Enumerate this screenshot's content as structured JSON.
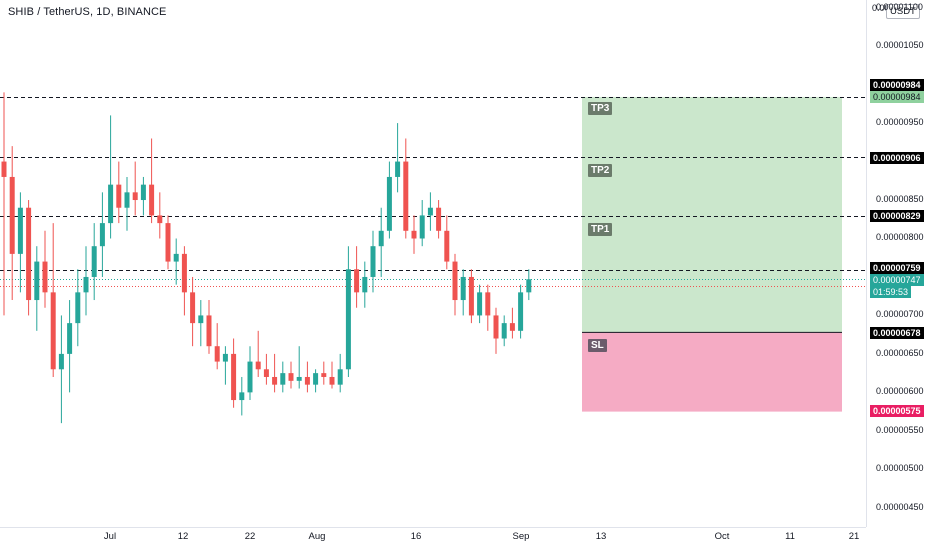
{
  "header": {
    "symbol_title": "SHIB / TetherUS, 1D, BINANCE",
    "currency_badge": "USDT"
  },
  "colors": {
    "up": "#26a69a",
    "down": "#ef5350",
    "tp_zone": "#c8e6c9",
    "sl_zone": "#f4a7c1",
    "dash_line": "#131722"
  },
  "price_scale": {
    "ticks": [
      "0.00001100",
      "0.00001050",
      "0.00000950",
      "0.00000900",
      "0.00000850",
      "0.00000800",
      "0.00000700",
      "0.00000650",
      "0.00000600",
      "0.00000550",
      "0.00000500",
      "0.00000450"
    ],
    "top_tick": "0.0000"
  },
  "price_tags": {
    "tp3": "0.00000984",
    "tp3_zone": "0.00000984",
    "tp2": "0.00000906",
    "tp1": "0.00000829",
    "entry": "0.00000759",
    "last_price": "0.00000747",
    "countdown": "01:59:53",
    "sl": "0.00000678",
    "sl_zone": "0.00000575"
  },
  "zone_labels": {
    "tp3": "TP3",
    "tp2": "TP2",
    "tp1": "TP1",
    "sl": "SL"
  },
  "time_scale": {
    "ticks": [
      "Jul",
      "12",
      "22",
      "Aug",
      "16",
      "Sep",
      "13",
      "Oct",
      "11",
      "21"
    ]
  },
  "chart_data": {
    "type": "candlestick",
    "title": "SHIB / TetherUS, 1D, BINANCE",
    "y_unit": "USDT",
    "y_range": [
      4.25e-06,
      1.11e-05
    ],
    "candles": [
      {
        "o": 9e-06,
        "h": 9.9e-06,
        "l": 7e-06,
        "c": 8.8e-06
      },
      {
        "o": 8.8e-06,
        "h": 9.2e-06,
        "l": 7.2e-06,
        "c": 7.8e-06
      },
      {
        "o": 7.8e-06,
        "h": 8.6e-06,
        "l": 7.3e-06,
        "c": 8.4e-06
      },
      {
        "o": 8.4e-06,
        "h": 8.5e-06,
        "l": 7e-06,
        "c": 7.2e-06
      },
      {
        "o": 7.2e-06,
        "h": 7.9e-06,
        "l": 6.8e-06,
        "c": 7.7e-06
      },
      {
        "o": 7.7e-06,
        "h": 8.1e-06,
        "l": 7.1e-06,
        "c": 7.3e-06
      },
      {
        "o": 7.3e-06,
        "h": 8.2e-06,
        "l": 6.2e-06,
        "c": 6.3e-06
      },
      {
        "o": 6.3e-06,
        "h": 7e-06,
        "l": 5.6e-06,
        "c": 6.5e-06
      },
      {
        "o": 6.5e-06,
        "h": 7.2e-06,
        "l": 6e-06,
        "c": 6.9e-06
      },
      {
        "o": 6.9e-06,
        "h": 7.6e-06,
        "l": 6.6e-06,
        "c": 7.3e-06
      },
      {
        "o": 7.3e-06,
        "h": 7.9e-06,
        "l": 7e-06,
        "c": 7.5e-06
      },
      {
        "o": 7.5e-06,
        "h": 8.2e-06,
        "l": 7.2e-06,
        "c": 7.9e-06
      },
      {
        "o": 7.9e-06,
        "h": 8.6e-06,
        "l": 7.5e-06,
        "c": 8.2e-06
      },
      {
        "o": 8.2e-06,
        "h": 9.6e-06,
        "l": 8e-06,
        "c": 8.7e-06
      },
      {
        "o": 8.7e-06,
        "h": 9e-06,
        "l": 8.2e-06,
        "c": 8.4e-06
      },
      {
        "o": 8.4e-06,
        "h": 8.8e-06,
        "l": 8.1e-06,
        "c": 8.6e-06
      },
      {
        "o": 8.6e-06,
        "h": 9e-06,
        "l": 8.3e-06,
        "c": 8.5e-06
      },
      {
        "o": 8.5e-06,
        "h": 8.8e-06,
        "l": 8.3e-06,
        "c": 8.7e-06
      },
      {
        "o": 8.7e-06,
        "h": 9.3e-06,
        "l": 8.2e-06,
        "c": 8.3e-06
      },
      {
        "o": 8.3e-06,
        "h": 8.6e-06,
        "l": 8e-06,
        "c": 8.2e-06
      },
      {
        "o": 8.2e-06,
        "h": 8.3e-06,
        "l": 7.6e-06,
        "c": 7.7e-06
      },
      {
        "o": 7.7e-06,
        "h": 8e-06,
        "l": 7.4e-06,
        "c": 7.8e-06
      },
      {
        "o": 7.8e-06,
        "h": 7.9e-06,
        "l": 7e-06,
        "c": 7.3e-06
      },
      {
        "o": 7.3e-06,
        "h": 7.5e-06,
        "l": 6.6e-06,
        "c": 6.9e-06
      },
      {
        "o": 6.9e-06,
        "h": 7.2e-06,
        "l": 6.6e-06,
        "c": 7e-06
      },
      {
        "o": 7e-06,
        "h": 7.2e-06,
        "l": 6.5e-06,
        "c": 6.6e-06
      },
      {
        "o": 6.6e-06,
        "h": 6.9e-06,
        "l": 6.3e-06,
        "c": 6.4e-06
      },
      {
        "o": 6.4e-06,
        "h": 6.6e-06,
        "l": 6.1e-06,
        "c": 6.5e-06
      },
      {
        "o": 6.5e-06,
        "h": 6.7e-06,
        "l": 5.8e-06,
        "c": 5.9e-06
      },
      {
        "o": 5.9e-06,
        "h": 6.2e-06,
        "l": 5.7e-06,
        "c": 6e-06
      },
      {
        "o": 6e-06,
        "h": 6.6e-06,
        "l": 5.9e-06,
        "c": 6.4e-06
      },
      {
        "o": 6.4e-06,
        "h": 6.8e-06,
        "l": 6.2e-06,
        "c": 6.3e-06
      },
      {
        "o": 6.3e-06,
        "h": 6.5e-06,
        "l": 6.1e-06,
        "c": 6.2e-06
      },
      {
        "o": 6.2e-06,
        "h": 6.5e-06,
        "l": 6e-06,
        "c": 6.1e-06
      },
      {
        "o": 6.1e-06,
        "h": 6.4e-06,
        "l": 6e-06,
        "c": 6.25e-06
      },
      {
        "o": 6.25e-06,
        "h": 6.4e-06,
        "l": 6.05e-06,
        "c": 6.15e-06
      },
      {
        "o": 6.15e-06,
        "h": 6.6e-06,
        "l": 6.05e-06,
        "c": 6.2e-06
      },
      {
        "o": 6.2e-06,
        "h": 6.4e-06,
        "l": 6e-06,
        "c": 6.1e-06
      },
      {
        "o": 6.1e-06,
        "h": 6.3e-06,
        "l": 6e-06,
        "c": 6.25e-06
      },
      {
        "o": 6.25e-06,
        "h": 6.4e-06,
        "l": 6.1e-06,
        "c": 6.2e-06
      },
      {
        "o": 6.2e-06,
        "h": 6.4e-06,
        "l": 6.05e-06,
        "c": 6.1e-06
      },
      {
        "o": 6.1e-06,
        "h": 6.5e-06,
        "l": 6e-06,
        "c": 6.3e-06
      },
      {
        "o": 6.3e-06,
        "h": 7.9e-06,
        "l": 6.2e-06,
        "c": 7.6e-06
      },
      {
        "o": 7.6e-06,
        "h": 7.9e-06,
        "l": 7.1e-06,
        "c": 7.3e-06
      },
      {
        "o": 7.3e-06,
        "h": 7.7e-06,
        "l": 7.1e-06,
        "c": 7.5e-06
      },
      {
        "o": 7.5e-06,
        "h": 8.1e-06,
        "l": 7.3e-06,
        "c": 7.9e-06
      },
      {
        "o": 7.9e-06,
        "h": 8.4e-06,
        "l": 7.5e-06,
        "c": 8.1e-06
      },
      {
        "o": 8.1e-06,
        "h": 9e-06,
        "l": 8e-06,
        "c": 8.8e-06
      },
      {
        "o": 8.8e-06,
        "h": 9.5e-06,
        "l": 8.6e-06,
        "c": 9e-06
      },
      {
        "o": 9e-06,
        "h": 9.3e-06,
        "l": 8e-06,
        "c": 8.1e-06
      },
      {
        "o": 8.1e-06,
        "h": 8.3e-06,
        "l": 7.8e-06,
        "c": 8e-06
      },
      {
        "o": 8e-06,
        "h": 8.5e-06,
        "l": 7.9e-06,
        "c": 8.3e-06
      },
      {
        "o": 8.3e-06,
        "h": 8.6e-06,
        "l": 8.1e-06,
        "c": 8.4e-06
      },
      {
        "o": 8.4e-06,
        "h": 8.5e-06,
        "l": 8e-06,
        "c": 8.1e-06
      },
      {
        "o": 8.1e-06,
        "h": 8.3e-06,
        "l": 7.6e-06,
        "c": 7.7e-06
      },
      {
        "o": 7.7e-06,
        "h": 7.8e-06,
        "l": 7e-06,
        "c": 7.2e-06
      },
      {
        "o": 7.2e-06,
        "h": 7.6e-06,
        "l": 7e-06,
        "c": 7.5e-06
      },
      {
        "o": 7.5e-06,
        "h": 7.6e-06,
        "l": 6.9e-06,
        "c": 7e-06
      },
      {
        "o": 7e-06,
        "h": 7.4e-06,
        "l": 6.9e-06,
        "c": 7.3e-06
      },
      {
        "o": 7.3e-06,
        "h": 7.4e-06,
        "l": 6.8e-06,
        "c": 7e-06
      },
      {
        "o": 7e-06,
        "h": 7.1e-06,
        "l": 6.5e-06,
        "c": 6.7e-06
      },
      {
        "o": 6.7e-06,
        "h": 7e-06,
        "l": 6.6e-06,
        "c": 6.9e-06
      },
      {
        "o": 6.9e-06,
        "h": 7.1e-06,
        "l": 6.7e-06,
        "c": 6.8e-06
      },
      {
        "o": 6.8e-06,
        "h": 7.4e-06,
        "l": 6.7e-06,
        "c": 7.3e-06
      },
      {
        "o": 7.3e-06,
        "h": 7.6e-06,
        "l": 7.2e-06,
        "c": 7.47e-06
      }
    ],
    "levels": [
      {
        "name": "TP3",
        "value": 9.84e-06
      },
      {
        "name": "TP2",
        "value": 9.06e-06
      },
      {
        "name": "TP1",
        "value": 8.29e-06
      },
      {
        "name": "Entry",
        "value": 7.59e-06
      },
      {
        "name": "SL",
        "value": 6.78e-06
      },
      {
        "name": "SL zone bottom",
        "value": 5.75e-06
      }
    ]
  }
}
